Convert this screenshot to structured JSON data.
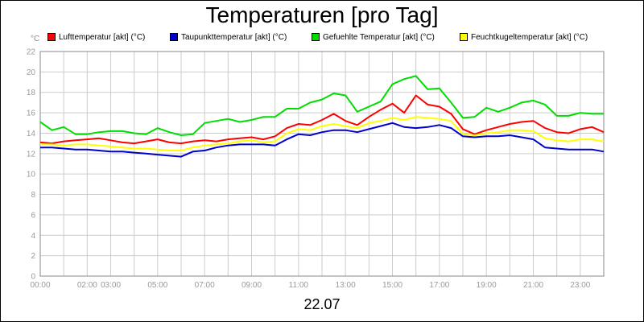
{
  "chart_data": {
    "type": "line",
    "title": "Temperaturen [pro Tag]",
    "date_label": "22.07",
    "unit": "°C",
    "ylim": [
      0,
      22
    ],
    "y_ticks": [
      "0",
      "2",
      "4",
      "6",
      "8",
      "10",
      "12",
      "14",
      "16",
      "18",
      "20",
      "22"
    ],
    "xlim": [
      0,
      24
    ],
    "x_ticks": [
      {
        "hour": 0,
        "label": "00:00"
      },
      {
        "hour": 2,
        "label": "02:00"
      },
      {
        "hour": 3,
        "label": "03:00"
      },
      {
        "hour": 5,
        "label": "05:00"
      },
      {
        "hour": 7,
        "label": "07:00"
      },
      {
        "hour": 9,
        "label": "09:00"
      },
      {
        "hour": 11,
        "label": "11:00"
      },
      {
        "hour": 13,
        "label": "13:00"
      },
      {
        "hour": 15,
        "label": "15:00"
      },
      {
        "hour": 17,
        "label": "17:00"
      },
      {
        "hour": 19,
        "label": "19:00"
      },
      {
        "hour": 21,
        "label": "21:00"
      },
      {
        "hour": 23,
        "label": "23:00"
      }
    ],
    "grid": true,
    "legend_position": "top",
    "x": [
      0,
      0.5,
      1,
      1.5,
      2,
      2.5,
      3,
      3.5,
      4,
      4.5,
      5,
      5.5,
      6,
      6.5,
      7,
      7.5,
      8,
      8.5,
      9,
      9.5,
      10,
      10.5,
      11,
      11.5,
      12,
      12.5,
      13,
      13.5,
      14,
      14.5,
      15,
      15.5,
      16,
      16.5,
      17,
      17.5,
      18,
      18.5,
      19,
      19.5,
      20,
      20.5,
      21,
      21.5,
      22,
      22.5,
      23,
      23.5,
      24
    ],
    "series": [
      {
        "name": "Lufttemperatur [akt] (°C)",
        "color": "#ff0000",
        "values": [
          13.1,
          13.0,
          13.2,
          13.3,
          13.4,
          13.5,
          13.3,
          13.1,
          13.0,
          13.2,
          13.4,
          13.1,
          13.0,
          13.2,
          13.3,
          13.2,
          13.4,
          13.5,
          13.6,
          13.4,
          13.7,
          14.5,
          14.9,
          14.8,
          15.3,
          15.9,
          15.2,
          14.8,
          15.6,
          16.3,
          16.9,
          16.0,
          17.7,
          16.8,
          16.6,
          15.9,
          14.4,
          13.9,
          14.3,
          14.6,
          14.9,
          15.1,
          15.2,
          14.5,
          14.1,
          14.0,
          14.4,
          14.6,
          14.1
        ]
      },
      {
        "name": "Taupunkttemperatur [akt] (°C)",
        "color": "#0000cc",
        "values": [
          12.6,
          12.6,
          12.5,
          12.4,
          12.4,
          12.3,
          12.2,
          12.2,
          12.1,
          12.0,
          11.9,
          11.8,
          11.7,
          12.2,
          12.3,
          12.6,
          12.8,
          12.9,
          12.9,
          12.9,
          12.8,
          13.4,
          13.9,
          13.8,
          14.1,
          14.3,
          14.3,
          14.1,
          14.4,
          14.7,
          15.0,
          14.6,
          14.5,
          14.6,
          14.8,
          14.5,
          13.7,
          13.6,
          13.7,
          13.7,
          13.8,
          13.6,
          13.4,
          12.6,
          12.5,
          12.4,
          12.4,
          12.4,
          12.2
        ]
      },
      {
        "name": "Gefuehlte Temperatur [akt] (°C)",
        "color": "#00dd00",
        "values": [
          15.1,
          14.3,
          14.6,
          13.9,
          13.9,
          14.1,
          14.2,
          14.2,
          14.0,
          13.9,
          14.5,
          14.1,
          13.8,
          13.9,
          15.0,
          15.2,
          15.4,
          15.1,
          15.3,
          15.6,
          15.6,
          16.4,
          16.4,
          17.0,
          17.3,
          17.9,
          17.7,
          16.1,
          16.6,
          17.1,
          18.8,
          19.3,
          19.6,
          18.3,
          18.4,
          17.0,
          15.5,
          15.6,
          16.5,
          16.1,
          16.5,
          17.0,
          17.2,
          16.8,
          15.7,
          15.7,
          16.0,
          15.9,
          15.9
        ]
      },
      {
        "name": "Feuchtkugeltemperatur [akt] (°C)",
        "color": "#ffff00",
        "values": [
          12.9,
          12.9,
          12.8,
          12.9,
          12.9,
          12.8,
          12.7,
          12.6,
          12.5,
          12.5,
          12.4,
          12.3,
          12.3,
          12.6,
          12.8,
          12.9,
          13.0,
          13.2,
          13.3,
          13.1,
          13.2,
          14.0,
          14.4,
          14.3,
          14.7,
          14.9,
          14.7,
          14.5,
          15.0,
          15.2,
          15.5,
          15.3,
          15.6,
          15.5,
          15.4,
          15.2,
          13.9,
          13.8,
          14.0,
          14.1,
          14.3,
          14.3,
          14.2,
          13.5,
          13.3,
          13.2,
          13.4,
          13.4,
          13.2
        ]
      }
    ]
  }
}
